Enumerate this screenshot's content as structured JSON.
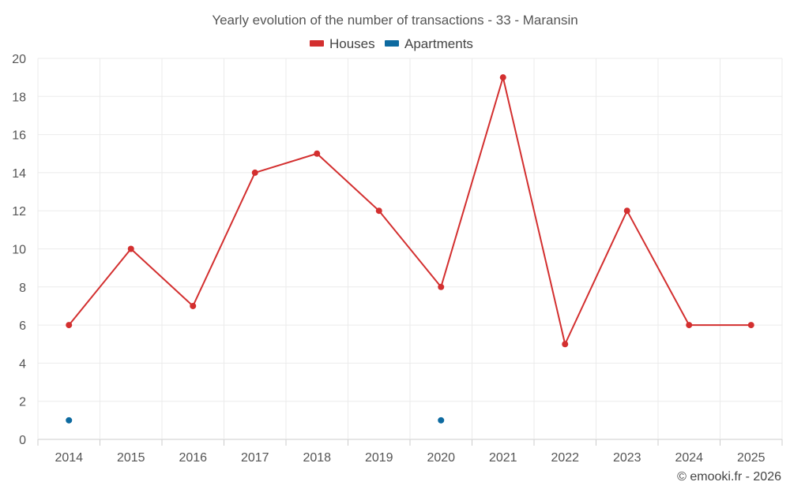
{
  "chart_data": {
    "type": "line",
    "title": "Yearly evolution of the number of transactions - 33 - Maransin",
    "categories": [
      "2014",
      "2015",
      "2016",
      "2017",
      "2018",
      "2019",
      "2020",
      "2021",
      "2022",
      "2023",
      "2024",
      "2025"
    ],
    "series": [
      {
        "name": "Houses",
        "color": "#d32f2f",
        "line": true,
        "values": [
          6,
          10,
          7,
          14,
          15,
          12,
          8,
          19,
          5,
          12,
          6,
          6
        ]
      },
      {
        "name": "Apartments",
        "color": "#0d6aa0",
        "line": false,
        "values": [
          1,
          null,
          null,
          null,
          null,
          null,
          1,
          null,
          null,
          null,
          null,
          null
        ]
      }
    ],
    "ylim": [
      0,
      20
    ],
    "yticks": [
      0,
      2,
      4,
      6,
      8,
      10,
      12,
      14,
      16,
      18,
      20
    ],
    "legend_position": "top-center",
    "grid": true
  },
  "credit": "© emooki.fr - 2026"
}
